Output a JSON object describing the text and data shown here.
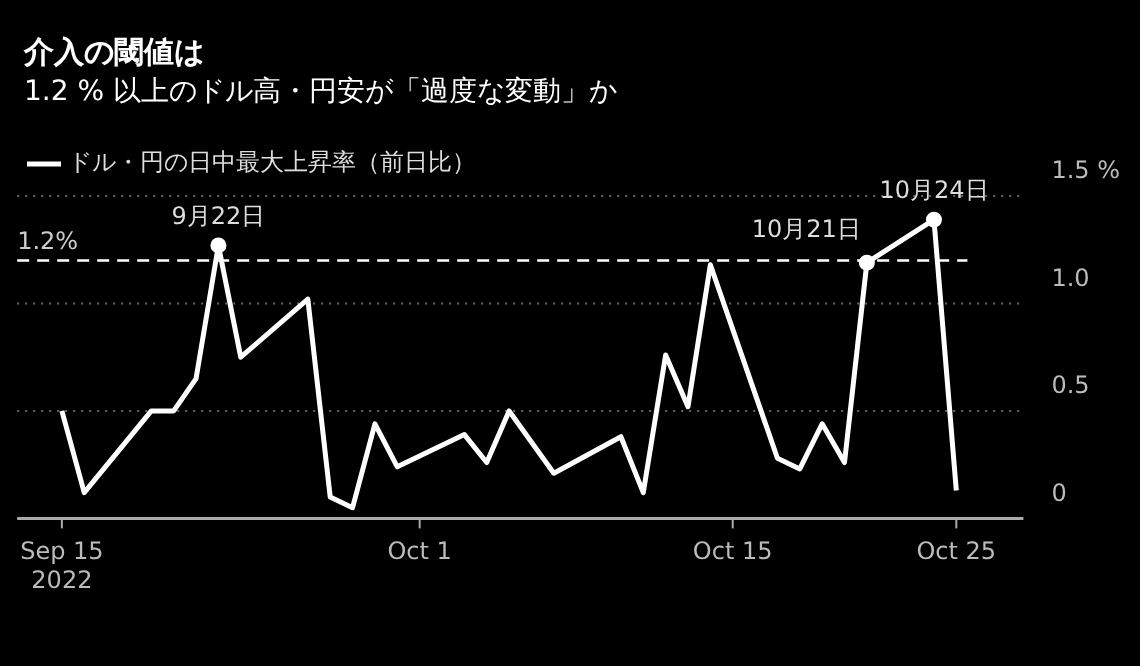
{
  "chart_data": {
    "type": "line",
    "title": "介入の閾値は",
    "subtitle": "1.2 % 以上のドル高・円安が「過度な変動」か",
    "x": [
      "2022-09-15",
      "2022-09-16",
      "2022-09-19",
      "2022-09-20",
      "2022-09-21",
      "2022-09-22",
      "2022-09-23",
      "2022-09-26",
      "2022-09-27",
      "2022-09-28",
      "2022-09-29",
      "2022-09-30",
      "2022-10-03",
      "2022-10-04",
      "2022-10-05",
      "2022-10-07",
      "2022-10-10",
      "2022-10-11",
      "2022-10-12",
      "2022-10-13",
      "2022-10-14",
      "2022-10-17",
      "2022-10-18",
      "2022-10-19",
      "2022-10-20",
      "2022-10-21",
      "2022-10-24",
      "2022-10-25"
    ],
    "series": [
      {
        "name": "ドル・円の日中最大上昇率（前日比）",
        "color": "#ffffff",
        "values": [
          0.5,
          0.12,
          0.5,
          0.5,
          0.65,
          1.27,
          0.75,
          1.02,
          0.1,
          0.05,
          0.44,
          0.24,
          0.39,
          0.26,
          0.5,
          0.21,
          0.38,
          0.12,
          0.76,
          0.52,
          1.18,
          0.28,
          0.23,
          0.44,
          0.26,
          1.19,
          1.39,
          0.13
        ]
      }
    ],
    "xlim": [
      "2022-09-13",
      "2022-10-28"
    ],
    "xticks": [
      {
        "value": "2022-09-15",
        "label": "Sep 15\n2022"
      },
      {
        "value": "2022-10-01",
        "label": "Oct 1"
      },
      {
        "value": "2022-10-15",
        "label": "Oct 15"
      },
      {
        "value": "2022-10-25",
        "label": "Oct 25"
      }
    ],
    "ylim": [
      0,
      1.5
    ],
    "yticks": [
      0,
      0.5,
      {
        "value": 1,
        "label": "1.0"
      },
      {
        "value": 1.5,
        "label": "1.5 %"
      }
    ],
    "ref_lines": [
      {
        "axis": "y",
        "value": 1.2,
        "label": "1.2%",
        "color": "#ffffff",
        "line_style": "dashed"
      }
    ],
    "annotations": [
      {
        "text": "9月22日",
        "x": "2022-09-22",
        "y": 1.27
      },
      {
        "text": "10月21日",
        "x": "2022-10-21",
        "y": 1.19
      },
      {
        "text": "10月24日",
        "x": "2022-10-24",
        "y": 1.39
      }
    ],
    "grid": "y",
    "legend": "top left",
    "marker": "none",
    "line_style": "solid"
  }
}
